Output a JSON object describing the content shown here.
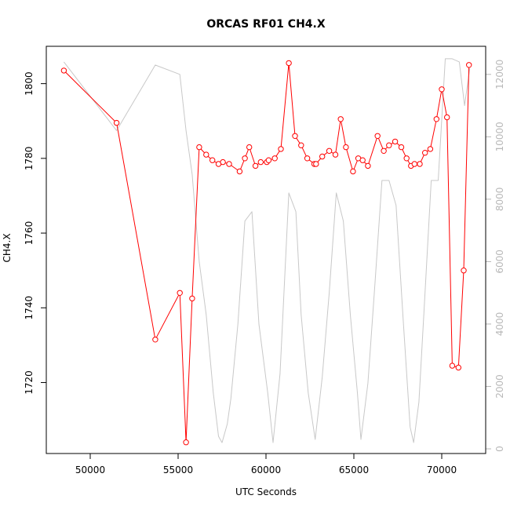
{
  "chart_data": {
    "type": "line",
    "title": "ORCAS RF01 CH4.X",
    "xlabel": "UTC Seconds",
    "ylabel": "CH4.X",
    "xlim": [
      47500,
      72500
    ],
    "ylim": [
      1701,
      1810
    ],
    "y2lim": [
      -150,
      12900
    ],
    "x_ticks": [
      50000,
      55000,
      60000,
      65000,
      70000
    ],
    "y_ticks": [
      1720,
      1740,
      1760,
      1780,
      1800
    ],
    "y2_ticks": [
      0,
      2000,
      4000,
      6000,
      8000,
      10000,
      12000
    ],
    "grid": false,
    "legend": "none",
    "series": [
      {
        "color": "#ff0000",
        "axis": "left",
        "style": "line+points",
        "x": [
          48500,
          51500,
          53700,
          55100,
          55450,
          55800,
          56200,
          56600,
          56950,
          57300,
          57550,
          57900,
          58500,
          58800,
          59050,
          59400,
          59700,
          60050,
          60150,
          60500,
          60850,
          61300,
          61650,
          62000,
          62350,
          62750,
          62850,
          63200,
          63600,
          63950,
          64250,
          64550,
          64950,
          65250,
          65500,
          65800,
          66350,
          66700,
          67000,
          67350,
          67700,
          68000,
          68250,
          68450,
          68750,
          69050,
          69350,
          69700,
          70000,
          70300,
          70600,
          70950,
          71250,
          71550
        ],
        "y": [
          1803.5,
          1789.5,
          1731.5,
          1744,
          1704,
          1742.5,
          1783,
          1781,
          1779.5,
          1778.5,
          1779,
          1778.5,
          1776.5,
          1780,
          1783,
          1778,
          1779,
          1779,
          1779.5,
          1780,
          1782.5,
          1805.5,
          1786,
          1783.5,
          1780,
          1778.5,
          1778.5,
          1780.5,
          1782,
          1781,
          1790.5,
          1783,
          1776.5,
          1780,
          1779.5,
          1778,
          1786,
          1782,
          1783.5,
          1784.5,
          1783,
          1780,
          1778,
          1778.5,
          1778.5,
          1781.5,
          1782.5,
          1790.5,
          1798.5,
          1791,
          1724.5,
          1724,
          1750,
          1805
        ]
      },
      {
        "color": "#c8c8c8",
        "axis": "right",
        "style": "line",
        "x": [
          48500,
          51500,
          53700,
          55100,
          55450,
          55800,
          56200,
          56600,
          57000,
          57300,
          57500,
          57800,
          58000,
          58400,
          58800,
          59200,
          59600,
          60100,
          60400,
          60800,
          61300,
          61700,
          62000,
          62400,
          62800,
          63200,
          63600,
          64000,
          64400,
          64800,
          65200,
          65400,
          65800,
          66200,
          66600,
          67000,
          67400,
          67800,
          68200,
          68400,
          68700,
          69000,
          69400,
          69800,
          70200,
          70600,
          71000,
          71300,
          71600
        ],
        "y": [
          12400,
          10200,
          12300,
          12000,
          10200,
          8800,
          6000,
          4300,
          1800,
          400,
          200,
          800,
          1600,
          4000,
          7300,
          7600,
          4000,
          1800,
          200,
          2400,
          8200,
          7600,
          4300,
          1800,
          300,
          2300,
          5000,
          8200,
          7300,
          4300,
          1800,
          300,
          2100,
          5300,
          8600,
          8600,
          7800,
          4200,
          700,
          200,
          1500,
          4500,
          8600,
          8600,
          12500,
          12500,
          12400,
          11000,
          12200
        ]
      }
    ]
  }
}
